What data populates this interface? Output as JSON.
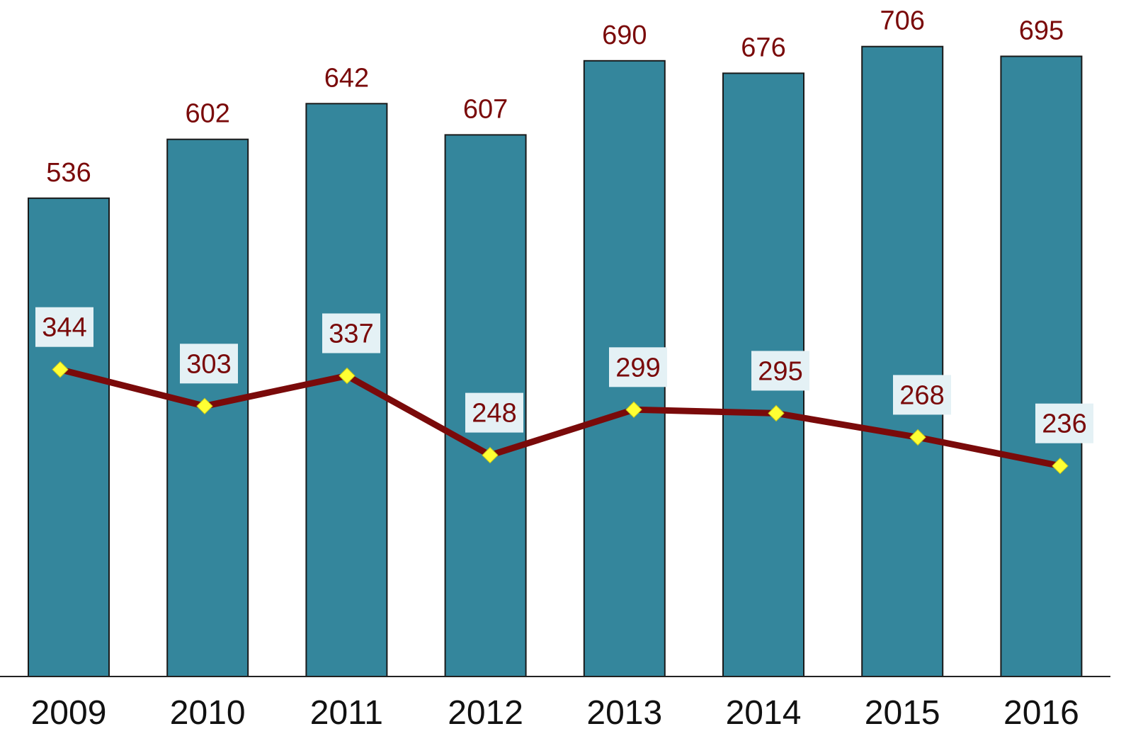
{
  "chart_data": {
    "type": "bar",
    "categories": [
      "2009",
      "2010",
      "2011",
      "2012",
      "2013",
      "2014",
      "2015",
      "2016"
    ],
    "series": [
      {
        "type": "bar",
        "values": [
          536,
          602,
          642,
          607,
          690,
          676,
          706,
          695
        ],
        "color": "#34869c"
      },
      {
        "type": "line",
        "values": [
          344,
          303,
          337,
          248,
          299,
          295,
          268,
          236
        ],
        "color": "#7a0a0a",
        "marker_color": "#ffff33"
      }
    ],
    "title": "",
    "xlabel": "",
    "ylabel": "",
    "ylim": [
      0,
      760
    ],
    "grid": false,
    "legend": "none",
    "data_labels": true
  }
}
